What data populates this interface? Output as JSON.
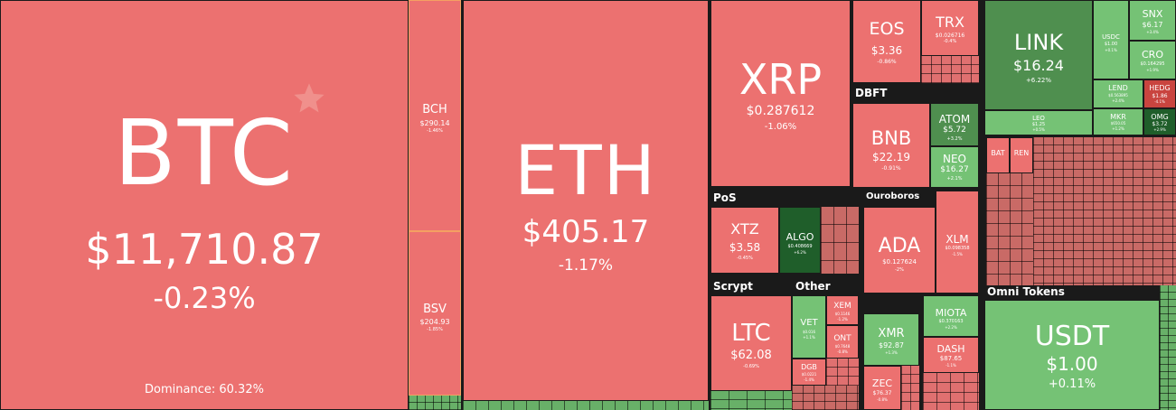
{
  "tiles": {
    "btc": {
      "symbol": "BTC",
      "price": "$11,710.87",
      "change": "-0.23%",
      "dominance": "Dominance: 60.32%"
    },
    "bch": {
      "symbol": "BCH",
      "price": "$290.14",
      "change": "-1.46%"
    },
    "bsv": {
      "symbol": "BSV",
      "price": "$204.93",
      "change": "-1.85%"
    },
    "eth": {
      "symbol": "ETH",
      "price": "$405.17",
      "change": "-1.17%"
    },
    "xrp": {
      "symbol": "XRP",
      "price": "$0.287612",
      "change": "-1.06%"
    },
    "eos": {
      "symbol": "EOS",
      "price": "$3.36",
      "change": "-0.86%"
    },
    "trx": {
      "symbol": "TRX",
      "price": "$0.026716",
      "change": "-0.4%"
    },
    "link": {
      "symbol": "LINK",
      "price": "$16.24",
      "change": "+6.22%"
    },
    "usdc": {
      "symbol": "USDC",
      "price": "$1.00",
      "change": "+0.1%"
    },
    "snx": {
      "symbol": "SNX",
      "price": "$6.17",
      "change": "+3.4%"
    },
    "cro": {
      "symbol": "CRO",
      "price": "$0.164295",
      "change": "+1.9%"
    },
    "lend": {
      "symbol": "LEND",
      "price": "$0.563895",
      "change": "+2.4%"
    },
    "hedg": {
      "symbol": "HEDG",
      "price": "$1.86",
      "change": "-4.1%"
    },
    "leo": {
      "symbol": "LEO",
      "price": "$1.25",
      "change": "+0.5%"
    },
    "mkr": {
      "symbol": "MKR",
      "price": "$650.05",
      "change": "+1.2%"
    },
    "omg": {
      "symbol": "OMG",
      "price": "$3.72",
      "change": "+2.9%"
    },
    "bnb": {
      "symbol": "BNB",
      "price": "$22.19",
      "change": "-0.91%"
    },
    "atom": {
      "symbol": "ATOM",
      "price": "$5.72",
      "change": "+3.2%"
    },
    "neo": {
      "symbol": "NEO",
      "price": "$16.27",
      "change": "+2.1%"
    },
    "xtz": {
      "symbol": "XTZ",
      "price": "$3.58",
      "change": "-0.45%"
    },
    "algo": {
      "symbol": "ALGO",
      "price": "$0.408669",
      "change": "+6.2%"
    },
    "ada": {
      "symbol": "ADA",
      "price": "$0.127624",
      "change": "-2%"
    },
    "xlm": {
      "symbol": "XLM",
      "price": "$0.098358",
      "change": "-1.5%"
    },
    "ltc": {
      "symbol": "LTC",
      "price": "$62.08",
      "change": "-0.69%"
    },
    "vet": {
      "symbol": "VET",
      "price": "$0.016",
      "change": "+1.1%"
    },
    "xem": {
      "symbol": "XEM",
      "price": "$0.1146",
      "change": "-1.2%"
    },
    "ont": {
      "symbol": "ONT",
      "price": "$0.7648",
      "change": "-0.8%"
    },
    "dgb": {
      "symbol": "DGB",
      "price": "$0.0221",
      "change": "-1.4%"
    },
    "xmr": {
      "symbol": "XMR",
      "price": "$92.87",
      "change": "+1.3%"
    },
    "miota": {
      "symbol": "MIOTA",
      "price": "$0.370163",
      "change": "+2.2%"
    },
    "dash": {
      "symbol": "DASH",
      "price": "$87.65",
      "change": "-1.1%"
    },
    "zec": {
      "symbol": "ZEC",
      "price": "$76.37",
      "change": "-0.8%"
    },
    "usdt": {
      "symbol": "USDT",
      "price": "$1.00",
      "change": "+0.11%"
    },
    "bat": {
      "symbol": "BAT"
    },
    "ren": {
      "symbol": "REN"
    }
  },
  "groups": {
    "dbft": "DBFT",
    "pos": "PoS",
    "ouroboros": "Ouroboros",
    "scrypt": "Scrypt",
    "other": "Other",
    "omni": "Omni Tokens"
  },
  "icons": {
    "favorite": "star-icon"
  },
  "colors": {
    "down": "#ec7170",
    "up": "#75c275",
    "up_strong": "#4f8f4f",
    "background": "#1a1a1a"
  }
}
